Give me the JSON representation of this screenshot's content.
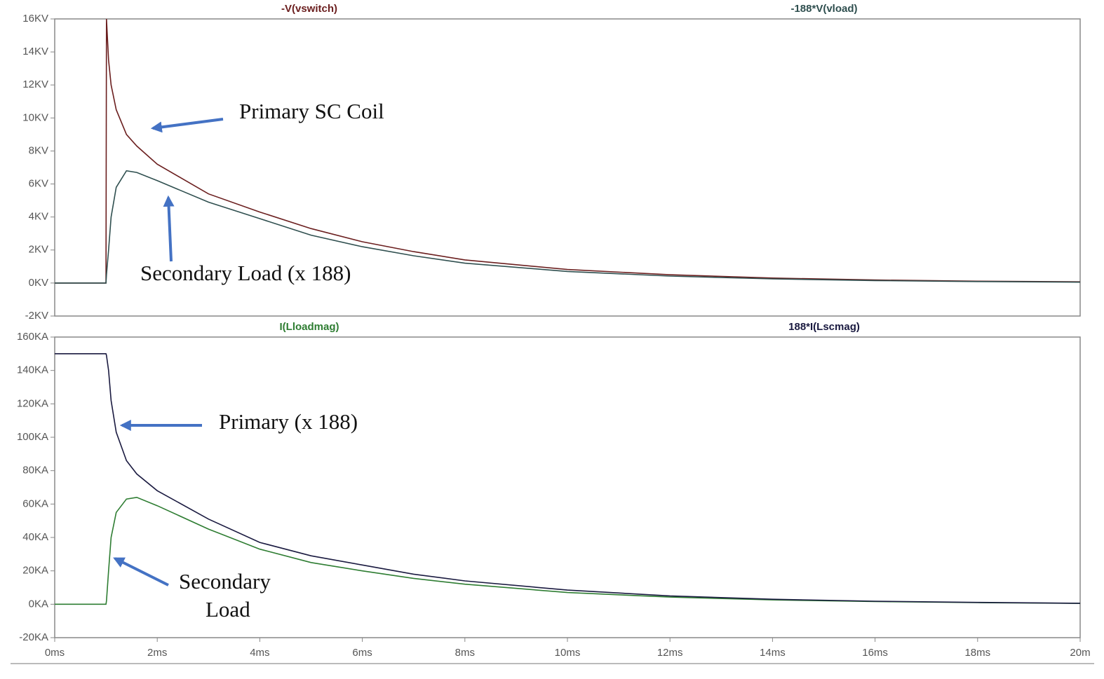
{
  "chart_data": [
    {
      "type": "line",
      "x": [
        0,
        1,
        1.01,
        1.05,
        1.1,
        1.2,
        1.4,
        1.6,
        2,
        3,
        4,
        5,
        6,
        7,
        8,
        10,
        12,
        14,
        16,
        18,
        20
      ],
      "xlim": [
        0,
        20
      ],
      "ylim": [
        -2,
        16
      ],
      "yticks": [
        {
          "value": 16,
          "label": "16KV"
        },
        {
          "value": 14,
          "label": "14KV"
        },
        {
          "value": 12,
          "label": "12KV"
        },
        {
          "value": 10,
          "label": "10KV"
        },
        {
          "value": 8,
          "label": "8KV"
        },
        {
          "value": 6,
          "label": "6KV"
        },
        {
          "value": 4,
          "label": "4KV"
        },
        {
          "value": 2,
          "label": "2KV"
        },
        {
          "value": 0,
          "label": "0KV"
        },
        {
          "value": -2,
          "label": "-2KV"
        }
      ],
      "series": [
        {
          "name": "-V(vswitch)",
          "color": "#6b1f1f",
          "values": [
            0,
            0,
            16,
            13.5,
            12,
            10.5,
            9,
            8.3,
            7.2,
            5.4,
            4.3,
            3.3,
            2.5,
            1.9,
            1.4,
            0.82,
            0.5,
            0.3,
            0.18,
            0.11,
            0.07
          ]
        },
        {
          "name": "-188*V(vload)",
          "color": "#2f4f4f",
          "values": [
            0,
            0,
            0.5,
            2,
            4,
            5.8,
            6.8,
            6.7,
            6.2,
            4.9,
            3.9,
            2.9,
            2.2,
            1.65,
            1.2,
            0.7,
            0.42,
            0.25,
            0.15,
            0.09,
            0.05
          ]
        }
      ],
      "annotations": [
        "Primary SC Coil",
        "Secondary Load (x 188)"
      ]
    },
    {
      "type": "line",
      "x": [
        0,
        1,
        1.01,
        1.05,
        1.1,
        1.2,
        1.4,
        1.6,
        2,
        3,
        4,
        5,
        6,
        7,
        8,
        10,
        12,
        14,
        16,
        18,
        20
      ],
      "xlim": [
        0,
        20
      ],
      "xticks": [
        {
          "value": 0,
          "label": "0ms"
        },
        {
          "value": 2,
          "label": "2ms"
        },
        {
          "value": 4,
          "label": "4ms"
        },
        {
          "value": 6,
          "label": "6ms"
        },
        {
          "value": 8,
          "label": "8ms"
        },
        {
          "value": 10,
          "label": "10ms"
        },
        {
          "value": 12,
          "label": "12ms"
        },
        {
          "value": 14,
          "label": "14ms"
        },
        {
          "value": 16,
          "label": "16ms"
        },
        {
          "value": 18,
          "label": "18ms"
        },
        {
          "value": 20,
          "label": "20m"
        }
      ],
      "ylim": [
        -20,
        160
      ],
      "yticks": [
        {
          "value": 160,
          "label": "160KA"
        },
        {
          "value": 140,
          "label": "140KA"
        },
        {
          "value": 120,
          "label": "120KA"
        },
        {
          "value": 100,
          "label": "100KA"
        },
        {
          "value": 80,
          "label": "80KA"
        },
        {
          "value": 60,
          "label": "60KA"
        },
        {
          "value": 40,
          "label": "40KA"
        },
        {
          "value": 20,
          "label": "20KA"
        },
        {
          "value": 0,
          "label": "0KA"
        },
        {
          "value": -20,
          "label": "-20KA"
        }
      ],
      "series": [
        {
          "name": "I(Lloadmag)",
          "color": "#2e7d32",
          "values": [
            0,
            0,
            2,
            20,
            40,
            55,
            63,
            64,
            59,
            45,
            33,
            25,
            20,
            15.5,
            12,
            7,
            4.3,
            2.6,
            1.6,
            1,
            0.5
          ]
        },
        {
          "name": "188*I(Lscmag)",
          "color": "#1a1a40",
          "values": [
            150,
            150,
            149,
            140,
            122,
            103,
            86,
            78,
            68,
            51,
            37,
            29,
            23.5,
            18,
            14,
            8.5,
            5,
            3,
            1.8,
            1.1,
            0.6
          ]
        }
      ],
      "annotations": [
        "Primary (x 188)",
        "Secondary",
        "Load"
      ]
    }
  ]
}
